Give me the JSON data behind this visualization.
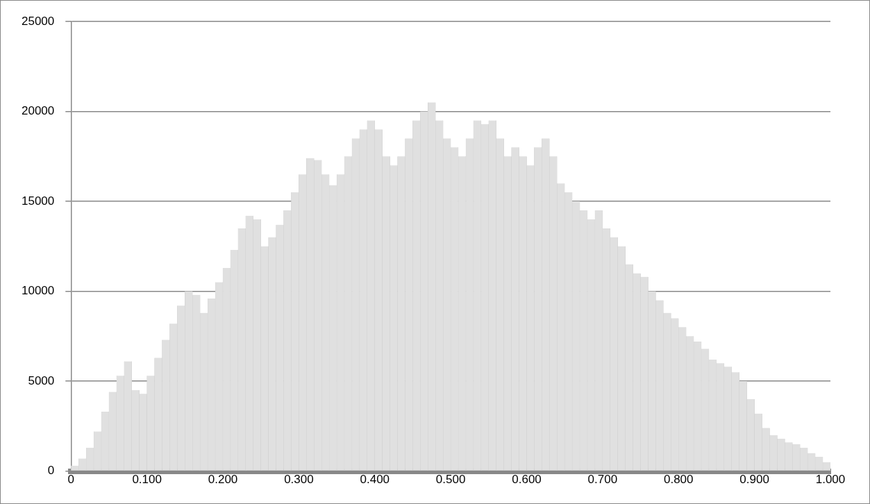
{
  "chart_data": {
    "type": "histogram",
    "color": "#e0e0e0",
    "bins": [
      0,
      0.01,
      0.02,
      0.03,
      0.04,
      0.05,
      0.06,
      0.07,
      0.08,
      0.09,
      0.1,
      0.11,
      0.12,
      0.13,
      0.14,
      0.15,
      0.16,
      0.17,
      0.18,
      0.19,
      0.2,
      0.21,
      0.22,
      0.23,
      0.24,
      0.25,
      0.26,
      0.27,
      0.28,
      0.29,
      0.3,
      0.31,
      0.32,
      0.33,
      0.34,
      0.35,
      0.36,
      0.37,
      0.38,
      0.39,
      0.4,
      0.41,
      0.42,
      0.43,
      0.44,
      0.45,
      0.46,
      0.47,
      0.48,
      0.49,
      0.5,
      0.51,
      0.52,
      0.53,
      0.54,
      0.55,
      0.56,
      0.57,
      0.58,
      0.59,
      0.6,
      0.61,
      0.62,
      0.63,
      0.64,
      0.65,
      0.66,
      0.67,
      0.68,
      0.69,
      0.7,
      0.71,
      0.72,
      0.73,
      0.74,
      0.75,
      0.76,
      0.77,
      0.78,
      0.79,
      0.8,
      0.81,
      0.82,
      0.83,
      0.84,
      0.85,
      0.86,
      0.87,
      0.88,
      0.89,
      0.9,
      0.91,
      0.92,
      0.93,
      0.94,
      0.95,
      0.96,
      0.97,
      0.98,
      0.99,
      1
    ],
    "values": [
      300,
      700,
      1300,
      2200,
      3300,
      4400,
      5300,
      6100,
      4500,
      4300,
      5300,
      6300,
      7300,
      8200,
      9200,
      10000,
      9800,
      8800,
      9600,
      10500,
      11300,
      12300,
      13500,
      14200,
      14000,
      12500,
      13000,
      13700,
      14500,
      15500,
      16500,
      17400,
      17300,
      16500,
      15900,
      16500,
      17500,
      18500,
      19000,
      19500,
      19000,
      17500,
      17000,
      17500,
      18500,
      19500,
      20000,
      20500,
      19500,
      18500,
      18000,
      17500,
      18500,
      19500,
      19300,
      19500,
      18500,
      17500,
      18000,
      17500,
      17000,
      18000,
      18500,
      17500,
      16000,
      15500,
      15000,
      14500,
      14000,
      14500,
      13500,
      13000,
      12500,
      11500,
      11000,
      10800,
      10000,
      9500,
      8800,
      8500,
      8000,
      7500,
      7200,
      6800,
      6200,
      6000,
      5800,
      5500,
      5000,
      4000,
      3200,
      2400,
      2000,
      1800,
      1600,
      1500,
      1300,
      1000,
      800,
      500
    ],
    "xlim": [
      0,
      1
    ],
    "xticks": [
      {
        "value": 0,
        "label": "0"
      },
      {
        "value": 0.1,
        "label": "0.100"
      },
      {
        "value": 0.2,
        "label": "0.200"
      },
      {
        "value": 0.3,
        "label": "0.300"
      },
      {
        "value": 0.4,
        "label": "0.400"
      },
      {
        "value": 0.5,
        "label": "0.500"
      },
      {
        "value": 0.6,
        "label": "0.600"
      },
      {
        "value": 0.7,
        "label": "0.700"
      },
      {
        "value": 0.8,
        "label": "0.800"
      },
      {
        "value": 0.9,
        "label": "0.900"
      },
      {
        "value": 1,
        "label": "1.000"
      }
    ],
    "ylim": [
      0,
      25000
    ],
    "yticks": [
      0,
      5000,
      10000,
      15000,
      20000,
      25000
    ],
    "grid": "y"
  }
}
